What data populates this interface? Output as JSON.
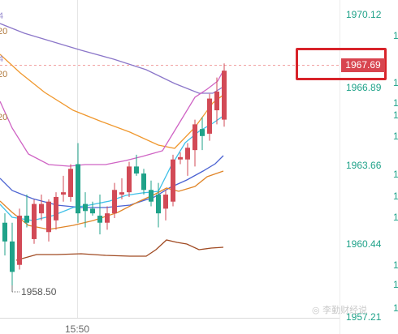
{
  "chart_data": {
    "type": "candlestick",
    "y_axis_labels": [
      "1970.12",
      "1966.89",
      "1963.66",
      "1960.44",
      "1957.21"
    ],
    "y_axis_right_partial": [
      "1",
      "1",
      "1",
      "1",
      "1",
      "1",
      "1",
      "1",
      "1",
      "1",
      "1"
    ],
    "x_tick_label": "15:50",
    "current_price": "1967.69",
    "low_annotation": "1958.50",
    "left_clipped_labels": [
      "4",
      "20",
      "4",
      "20",
      "20"
    ],
    "ylim": [
      1957.21,
      1970.12
    ],
    "colors": {
      "up": "#d24a56",
      "down": "#1fa289",
      "price_line": "#f2a2a2"
    },
    "candles": [
      {
        "o": 1961.2,
        "h": 1961.6,
        "l": 1959.8,
        "c": 1960.4
      },
      {
        "o": 1960.4,
        "h": 1961.2,
        "l": 1958.5,
        "c": 1959.1
      },
      {
        "o": 1959.4,
        "h": 1961.8,
        "l": 1959.2,
        "c": 1961.5
      },
      {
        "o": 1961.5,
        "h": 1962.4,
        "l": 1961.0,
        "c": 1961.2
      },
      {
        "o": 1960.5,
        "h": 1962.2,
        "l": 1960.3,
        "c": 1962.0
      },
      {
        "o": 1961.6,
        "h": 1962.4,
        "l": 1961.3,
        "c": 1962.0
      },
      {
        "o": 1960.8,
        "h": 1962.2,
        "l": 1960.4,
        "c": 1962.1
      },
      {
        "o": 1961.3,
        "h": 1962.5,
        "l": 1960.9,
        "c": 1962.3
      },
      {
        "o": 1962.4,
        "h": 1963.2,
        "l": 1962.1,
        "c": 1962.5
      },
      {
        "o": 1962.3,
        "h": 1963.7,
        "l": 1962.1,
        "c": 1963.5
      },
      {
        "o": 1963.7,
        "h": 1964.6,
        "l": 1961.2,
        "c": 1961.6
      },
      {
        "o": 1962.0,
        "h": 1962.5,
        "l": 1961.0,
        "c": 1961.7
      },
      {
        "o": 1961.8,
        "h": 1962.1,
        "l": 1961.5,
        "c": 1961.6
      },
      {
        "o": 1961.5,
        "h": 1962.4,
        "l": 1960.7,
        "c": 1961.2
      },
      {
        "o": 1961.2,
        "h": 1961.9,
        "l": 1960.9,
        "c": 1961.6
      },
      {
        "o": 1961.6,
        "h": 1962.9,
        "l": 1961.4,
        "c": 1962.6
      },
      {
        "o": 1962.4,
        "h": 1963.1,
        "l": 1962.2,
        "c": 1962.5
      },
      {
        "o": 1962.5,
        "h": 1963.8,
        "l": 1962.3,
        "c": 1963.6
      },
      {
        "o": 1963.6,
        "h": 1964.1,
        "l": 1963.2,
        "c": 1963.3
      },
      {
        "o": 1963.3,
        "h": 1963.5,
        "l": 1962.4,
        "c": 1962.6
      },
      {
        "o": 1962.6,
        "h": 1963.0,
        "l": 1961.9,
        "c": 1962.1
      },
      {
        "o": 1962.4,
        "h": 1962.9,
        "l": 1961.0,
        "c": 1961.6
      },
      {
        "o": 1961.8,
        "h": 1962.6,
        "l": 1961.3,
        "c": 1962.4
      },
      {
        "o": 1962.1,
        "h": 1964.1,
        "l": 1961.9,
        "c": 1963.9
      },
      {
        "o": 1963.9,
        "h": 1964.2,
        "l": 1963.7,
        "c": 1964.0
      },
      {
        "o": 1963.9,
        "h": 1964.6,
        "l": 1963.2,
        "c": 1964.4
      },
      {
        "o": 1964.3,
        "h": 1965.6,
        "l": 1963.6,
        "c": 1965.4
      },
      {
        "o": 1965.2,
        "h": 1965.7,
        "l": 1964.3,
        "c": 1964.9
      },
      {
        "o": 1965.0,
        "h": 1966.7,
        "l": 1964.7,
        "c": 1966.5
      },
      {
        "o": 1966.0,
        "h": 1967.4,
        "l": 1965.4,
        "c": 1966.8
      },
      {
        "o": 1965.6,
        "h": 1968.0,
        "l": 1965.3,
        "c": 1967.69
      }
    ]
  },
  "watermark": "◎ 李勤财经说"
}
